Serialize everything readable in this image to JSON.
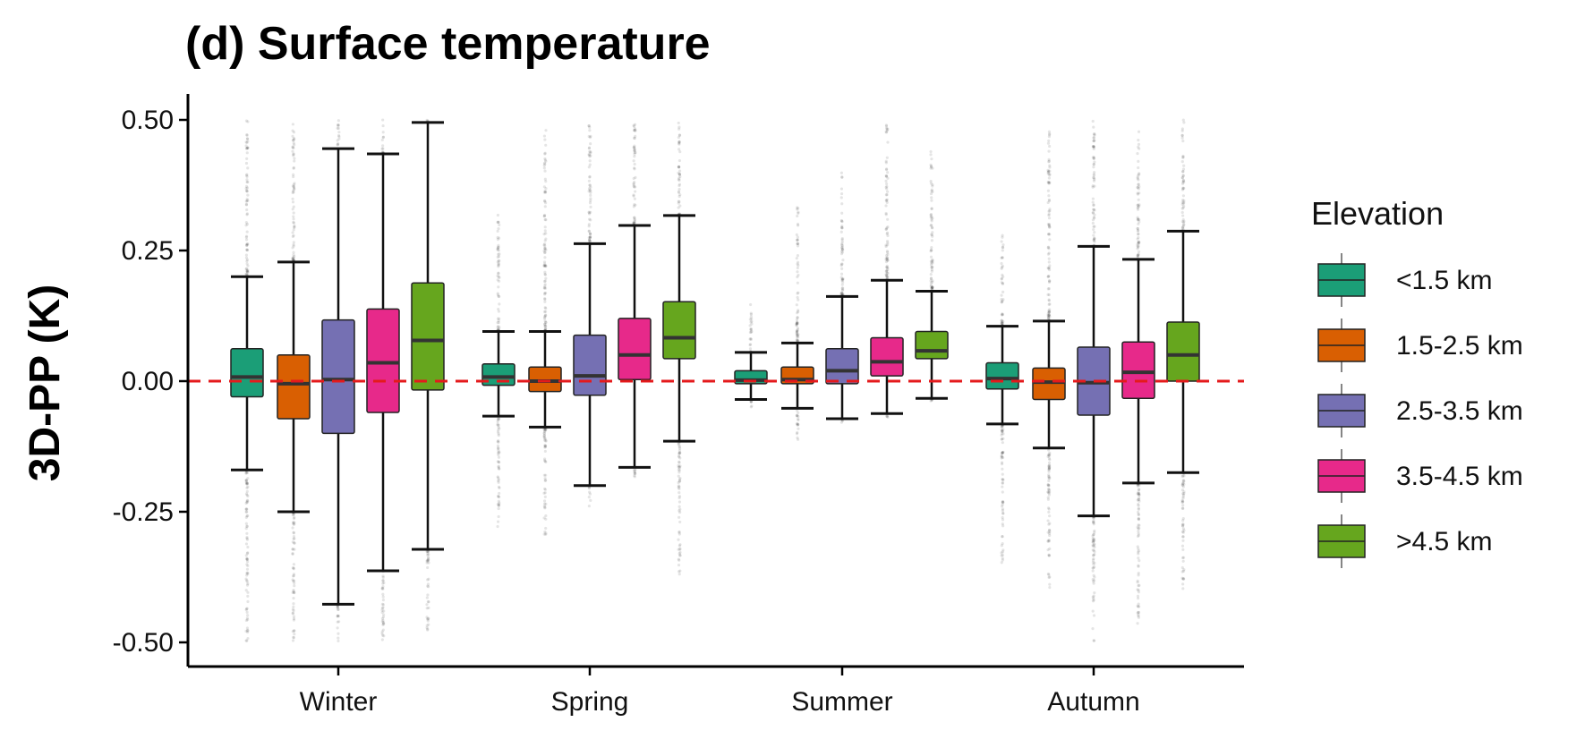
{
  "chart_data": {
    "type": "box",
    "title": "(d) Surface temperature",
    "ylabel": "3D-PP (K)",
    "xlabel": "",
    "ylim": [
      -0.55,
      0.55
    ],
    "yticks": [
      0.5,
      0.25,
      0.0,
      -0.25,
      -0.5
    ],
    "ytick_labels": [
      "0.50",
      "0.25",
      "0.00",
      "-0.25",
      "-0.50"
    ],
    "categories": [
      "Winter",
      "Spring",
      "Summer",
      "Autumn"
    ],
    "reference_line": {
      "y": 0,
      "style": "dashed",
      "color": "#e41a1c"
    },
    "legend": {
      "title": "Elevation",
      "placement": "right"
    },
    "series": [
      {
        "name": "<1.5 km",
        "color": "#1b9e77",
        "boxes": [
          {
            "q1": -0.03,
            "median": 0.008,
            "q3": 0.062,
            "whisker_low": -0.17,
            "whisker_high": 0.2,
            "outlier_min": -0.5,
            "outlier_max": 0.5
          },
          {
            "q1": -0.008,
            "median": 0.008,
            "q3": 0.033,
            "whisker_low": -0.067,
            "whisker_high": 0.095,
            "outlier_min": -0.28,
            "outlier_max": 0.32
          },
          {
            "q1": -0.005,
            "median": 0.002,
            "q3": 0.02,
            "whisker_low": -0.035,
            "whisker_high": 0.055,
            "outlier_min": -0.05,
            "outlier_max": 0.15
          },
          {
            "q1": -0.015,
            "median": 0.005,
            "q3": 0.035,
            "whisker_low": -0.082,
            "whisker_high": 0.105,
            "outlier_min": -0.36,
            "outlier_max": 0.28
          }
        ]
      },
      {
        "name": "1.5-2.5 km",
        "color": "#d95f02",
        "boxes": [
          {
            "q1": -0.072,
            "median": -0.005,
            "q3": 0.05,
            "whisker_low": -0.25,
            "whisker_high": 0.228,
            "outlier_min": -0.5,
            "outlier_max": 0.5
          },
          {
            "q1": -0.02,
            "median": 0.0,
            "q3": 0.027,
            "whisker_low": -0.088,
            "whisker_high": 0.095,
            "outlier_min": -0.3,
            "outlier_max": 0.48
          },
          {
            "q1": -0.005,
            "median": 0.003,
            "q3": 0.027,
            "whisker_low": -0.052,
            "whisker_high": 0.073,
            "outlier_min": -0.12,
            "outlier_max": 0.34
          },
          {
            "q1": -0.035,
            "median": -0.002,
            "q3": 0.025,
            "whisker_low": -0.128,
            "whisker_high": 0.115,
            "outlier_min": -0.4,
            "outlier_max": 0.48
          }
        ]
      },
      {
        "name": "2.5-3.5 km",
        "color": "#7570b3",
        "boxes": [
          {
            "q1": -0.1,
            "median": 0.003,
            "q3": 0.117,
            "whisker_low": -0.427,
            "whisker_high": 0.445,
            "outlier_min": -0.5,
            "outlier_max": 0.5
          },
          {
            "q1": -0.027,
            "median": 0.01,
            "q3": 0.088,
            "whisker_low": -0.2,
            "whisker_high": 0.263,
            "outlier_min": -0.24,
            "outlier_max": 0.5
          },
          {
            "q1": -0.005,
            "median": 0.02,
            "q3": 0.062,
            "whisker_low": -0.072,
            "whisker_high": 0.162,
            "outlier_min": -0.08,
            "outlier_max": 0.4
          },
          {
            "q1": -0.065,
            "median": -0.003,
            "q3": 0.065,
            "whisker_low": -0.258,
            "whisker_high": 0.258,
            "outlier_min": -0.5,
            "outlier_max": 0.5
          }
        ]
      },
      {
        "name": "3.5-4.5 km",
        "color": "#e7298a",
        "boxes": [
          {
            "q1": -0.06,
            "median": 0.035,
            "q3": 0.138,
            "whisker_low": -0.363,
            "whisker_high": 0.435,
            "outlier_min": -0.5,
            "outlier_max": 0.5
          },
          {
            "q1": 0.003,
            "median": 0.05,
            "q3": 0.12,
            "whisker_low": -0.165,
            "whisker_high": 0.298,
            "outlier_min": -0.2,
            "outlier_max": 0.5
          },
          {
            "q1": 0.01,
            "median": 0.037,
            "q3": 0.083,
            "whisker_low": -0.062,
            "whisker_high": 0.193,
            "outlier_min": -0.07,
            "outlier_max": 0.5
          },
          {
            "q1": -0.033,
            "median": 0.017,
            "q3": 0.075,
            "whisker_low": -0.195,
            "whisker_high": 0.233,
            "outlier_min": -0.48,
            "outlier_max": 0.48
          }
        ]
      },
      {
        "name": ">4.5 km",
        "color": "#66a61e",
        "boxes": [
          {
            "q1": -0.017,
            "median": 0.078,
            "q3": 0.188,
            "whisker_low": -0.322,
            "whisker_high": 0.495,
            "outlier_min": -0.48,
            "outlier_max": 0.5
          },
          {
            "q1": 0.043,
            "median": 0.083,
            "q3": 0.152,
            "whisker_low": -0.115,
            "whisker_high": 0.317,
            "outlier_min": -0.37,
            "outlier_max": 0.5
          },
          {
            "q1": 0.043,
            "median": 0.058,
            "q3": 0.095,
            "whisker_low": -0.033,
            "whisker_high": 0.172,
            "outlier_min": -0.04,
            "outlier_max": 0.45
          },
          {
            "q1": 0.0,
            "median": 0.05,
            "q3": 0.113,
            "whisker_low": -0.175,
            "whisker_high": 0.287,
            "outlier_min": -0.4,
            "outlier_max": 0.5
          }
        ]
      }
    ]
  }
}
